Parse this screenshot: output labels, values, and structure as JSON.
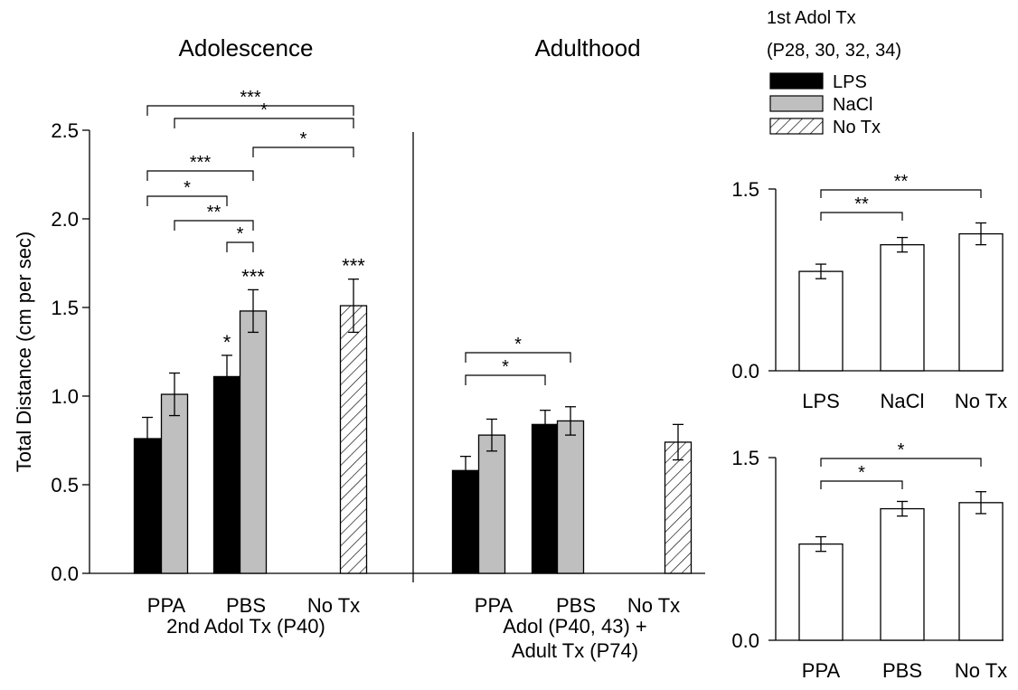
{
  "legend": {
    "title_line1": "1st Adol Tx",
    "title_line2": "(P28, 30, 32, 34)",
    "items": [
      {
        "label": "LPS",
        "fill": "#000000"
      },
      {
        "label": "NaCl",
        "fill": "#bfbfbf"
      },
      {
        "label": "No Tx",
        "fill": "hatch"
      }
    ]
  },
  "chart_data": [
    {
      "type": "bar",
      "ylabel": "Total Distance (cm per sec)",
      "ylim": [
        0,
        2.5
      ],
      "yticks": [
        "0.0",
        "0.5",
        "1.0",
        "1.5",
        "2.0",
        "2.5"
      ],
      "panels": [
        {
          "title": "Adolescence",
          "xlabel": "2nd Adol Tx (P40)",
          "categories": [
            "PPA",
            "PBS",
            "No Tx"
          ],
          "series": [
            {
              "name": "LPS",
              "values": [
                0.76,
                1.11,
                null
              ],
              "errors": [
                0.12,
                0.12,
                null
              ]
            },
            {
              "name": "NaCl",
              "values": [
                1.01,
                1.48,
                null
              ],
              "errors": [
                0.12,
                0.12,
                null
              ]
            },
            {
              "name": "No Tx",
              "values": [
                null,
                null,
                1.51
              ],
              "errors": [
                null,
                null,
                0.15
              ]
            }
          ],
          "bar_marks": [
            {
              "bar": "PBS-LPS",
              "text": "*"
            },
            {
              "bar": "PBS-NaCl",
              "text": "***"
            },
            {
              "bar": "NoTx",
              "text": "***"
            }
          ],
          "comparisons": [
            {
              "from": "PPA-LPS",
              "to": "NoTx",
              "text": "***"
            },
            {
              "from": "PPA-NaCl",
              "to": "NoTx",
              "text": "*"
            },
            {
              "from": "PBS-NaCl",
              "to": "NoTx",
              "text": "*"
            },
            {
              "from": "PPA-LPS",
              "to": "PBS-NaCl",
              "text": "***"
            },
            {
              "from": "PPA-LPS",
              "to": "PBS-LPS",
              "text": "*"
            },
            {
              "from": "PPA-NaCl",
              "to": "PBS-NaCl",
              "text": "**"
            },
            {
              "from": "PBS-LPS",
              "to": "PBS-NaCl",
              "text": "*"
            }
          ]
        },
        {
          "title": "Adulthood",
          "xlabel_lines": [
            "Adol (P40, 43) +",
            "Adult Tx (P74)"
          ],
          "categories": [
            "PPA",
            "PBS",
            "No Tx"
          ],
          "series": [
            {
              "name": "LPS",
              "values": [
                0.58,
                0.84,
                null
              ],
              "errors": [
                0.08,
                0.08,
                null
              ]
            },
            {
              "name": "NaCl",
              "values": [
                0.78,
                0.86,
                null
              ],
              "errors": [
                0.09,
                0.08,
                null
              ]
            },
            {
              "name": "No Tx",
              "values": [
                null,
                null,
                0.74
              ],
              "errors": [
                null,
                null,
                0.1
              ]
            }
          ],
          "bar_marks": [],
          "comparisons": [
            {
              "from": "PPA-LPS",
              "to": "PBS-NaCl",
              "text": "*"
            },
            {
              "from": "PPA-LPS",
              "to": "PBS-LPS",
              "text": "*"
            }
          ]
        }
      ]
    },
    {
      "type": "bar",
      "ylim": [
        0,
        1.5
      ],
      "yticks": [
        "0.0",
        "1.5"
      ],
      "categories": [
        "LPS",
        "NaCl",
        "No Tx"
      ],
      "values": [
        0.82,
        1.04,
        1.13
      ],
      "errors": [
        0.06,
        0.06,
        0.09
      ],
      "comparisons": [
        {
          "from": 0,
          "to": 2,
          "text": "**"
        },
        {
          "from": 0,
          "to": 1,
          "text": "**"
        }
      ]
    },
    {
      "type": "bar",
      "ylim": [
        0,
        1.5
      ],
      "yticks": [
        "0.0",
        "1.5"
      ],
      "categories": [
        "PPA",
        "PBS",
        "No Tx"
      ],
      "values": [
        0.79,
        1.08,
        1.13
      ],
      "errors": [
        0.06,
        0.06,
        0.09
      ],
      "comparisons": [
        {
          "from": 0,
          "to": 2,
          "text": "*"
        },
        {
          "from": 0,
          "to": 1,
          "text": "*"
        }
      ]
    }
  ]
}
